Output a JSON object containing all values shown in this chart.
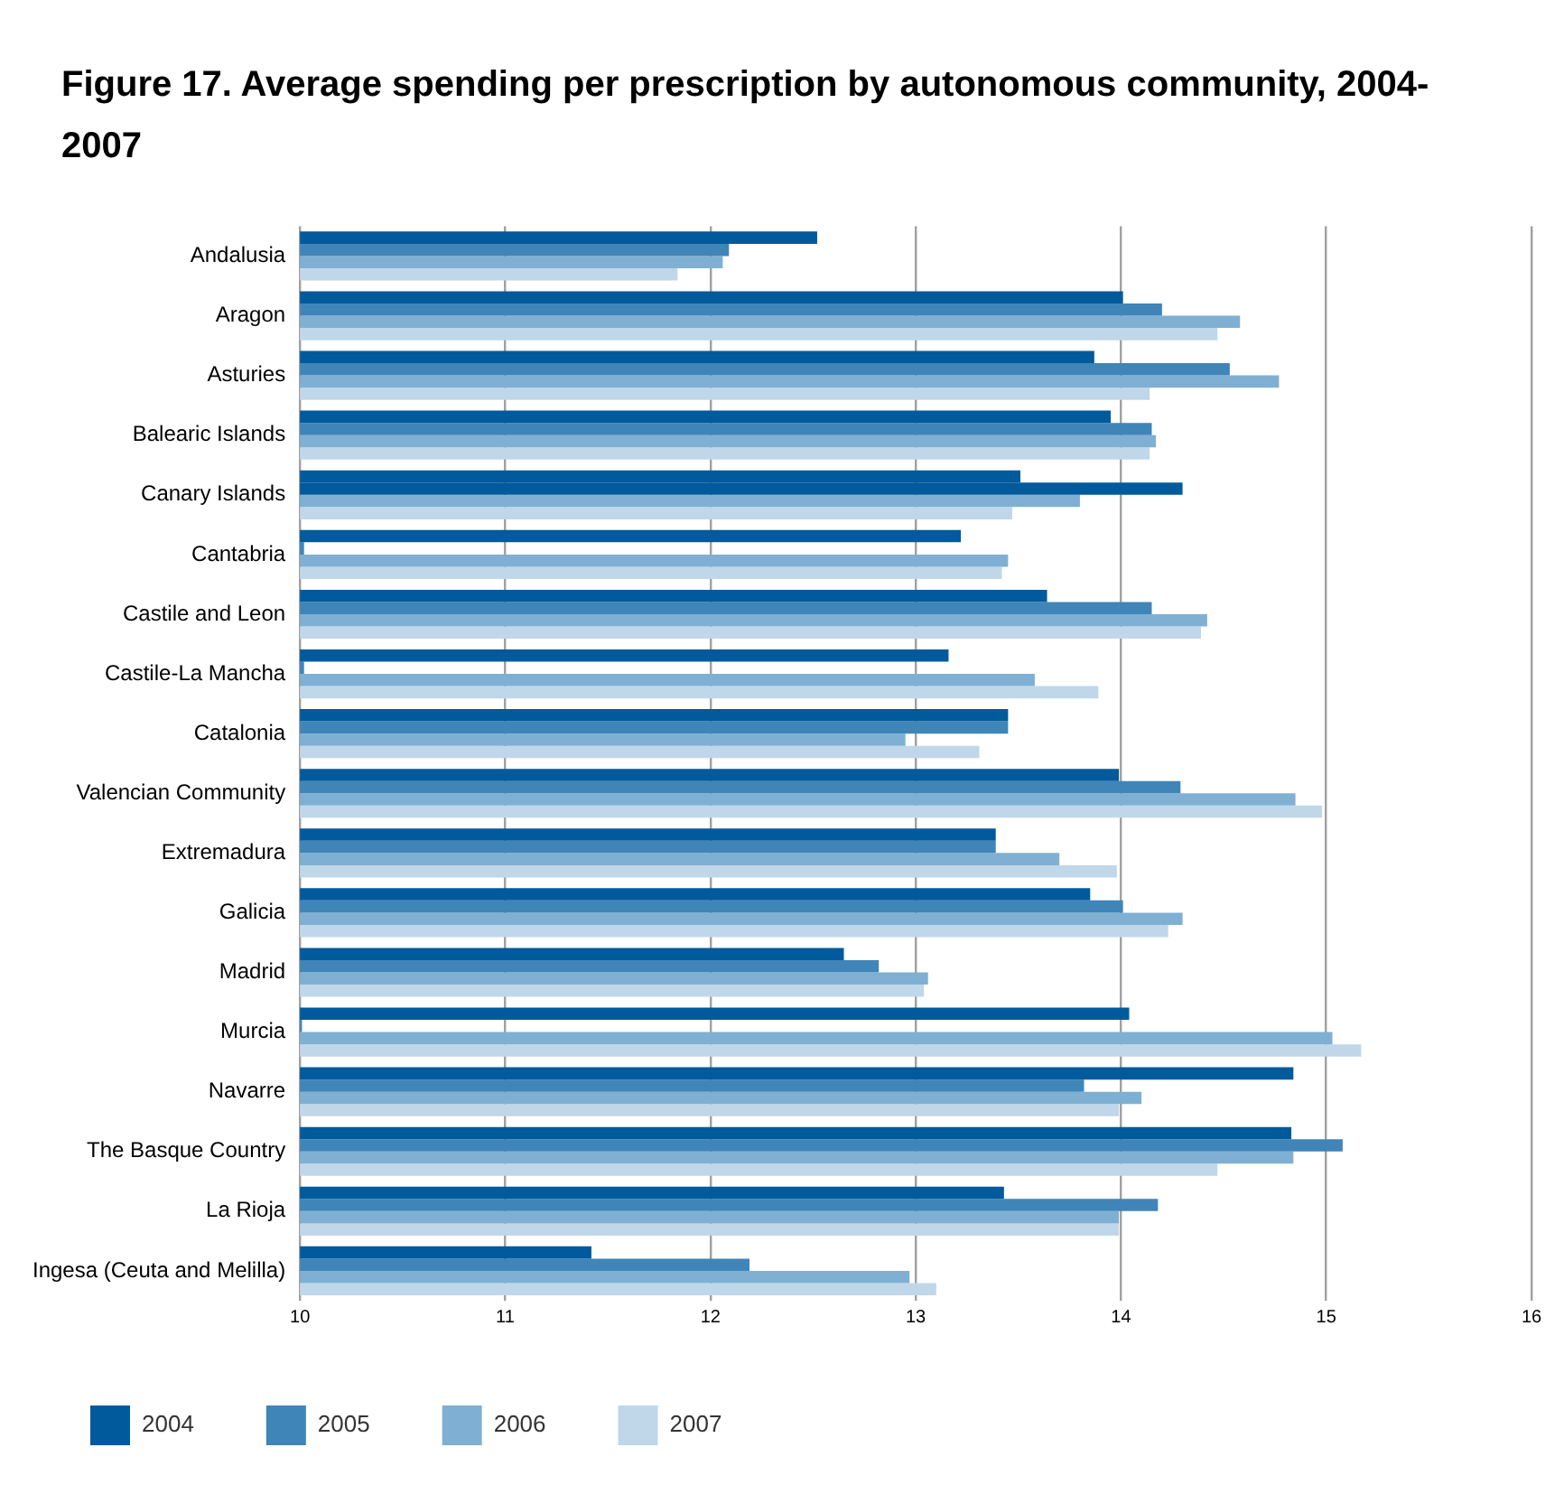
{
  "chart_data": {
    "type": "bar",
    "orientation": "horizontal",
    "title": "Figure 17. Average spending per prescription by autonomous community, 2004-2007",
    "categories": [
      "Andalusia",
      "Aragon",
      "Asturies",
      "Balearic Islands",
      "Canary Islands",
      "Cantabria",
      "Castile and Leon",
      "Castile-La Mancha",
      "Catalonia",
      "Valencian Community",
      "Extremadura",
      "Galicia",
      "Madrid",
      "Murcia",
      "Navarre",
      "The Basque Country",
      "La Rioja",
      "Ingesa (Ceuta and Melilla)"
    ],
    "series": [
      {
        "name": "2004",
        "color": "#005a9c",
        "values": [
          12.52,
          14.01,
          13.87,
          13.95,
          13.51,
          13.22,
          13.64,
          13.16,
          13.45,
          13.99,
          13.39,
          13.85,
          12.65,
          14.04,
          14.84,
          14.83,
          13.43,
          11.42
        ]
      },
      {
        "name": "2005",
        "color": "#3f85b8",
        "colors": [
          "#3f85b8",
          "#3f85b8",
          "#3f85b8",
          "#3f85b8",
          "#005a9c",
          "#3f85b8",
          "#3f85b8",
          "#3f85b8",
          "#3f85b8",
          "#3f85b8",
          "#3f85b8",
          "#3f85b8",
          "#3f85b8",
          "#3f85b8",
          "#3f85b8",
          "#3f85b8",
          "#3f85b8",
          "#3f85b8"
        ],
        "values": [
          12.09,
          14.2,
          14.53,
          14.15,
          14.3,
          10.02,
          14.15,
          10.02,
          13.45,
          14.29,
          13.39,
          14.01,
          12.82,
          10.01,
          13.82,
          15.08,
          14.18,
          12.19
        ]
      },
      {
        "name": "2006",
        "color": "#7fb0d3",
        "values": [
          12.06,
          14.58,
          14.77,
          14.17,
          13.8,
          13.45,
          14.42,
          13.58,
          12.95,
          14.85,
          13.7,
          14.3,
          13.06,
          15.03,
          14.1,
          14.84,
          13.99,
          12.97
        ]
      },
      {
        "name": "2007",
        "color": "#c0d7ea",
        "values": [
          11.84,
          14.47,
          14.14,
          14.14,
          13.47,
          13.42,
          14.39,
          13.89,
          13.31,
          14.98,
          13.98,
          14.23,
          13.04,
          15.17,
          13.99,
          14.47,
          13.99,
          13.1
        ]
      }
    ],
    "xlim": [
      10,
      16
    ],
    "xticks": [
      10,
      11,
      12,
      13,
      14,
      15,
      16
    ],
    "grid": "x",
    "legend": "bottom left"
  }
}
